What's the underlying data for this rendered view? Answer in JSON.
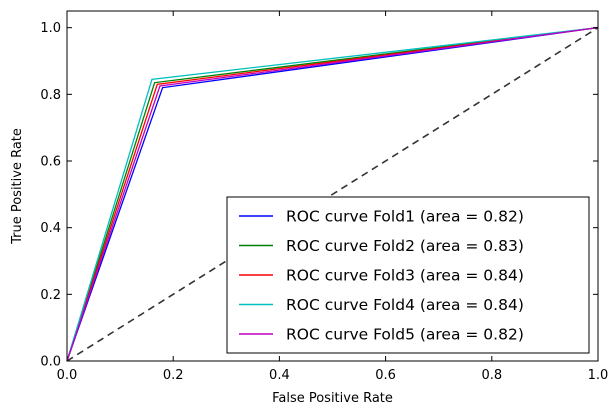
{
  "chart_data": {
    "type": "line",
    "title": "",
    "xlabel": "False Positive Rate",
    "ylabel": "True Positive Rate",
    "xlim": [
      0.0,
      1.0
    ],
    "ylim": [
      0.0,
      1.05
    ],
    "xticks": [
      "0.0",
      "0.2",
      "0.4",
      "0.6",
      "0.8",
      "1.0"
    ],
    "yticks": [
      "0.0",
      "0.2",
      "0.4",
      "0.6",
      "0.8",
      "1.0"
    ],
    "grid": false,
    "legend_position": "lower-right",
    "series": [
      {
        "name": "ROC curve Fold1 (area = 0.82)",
        "color": "#0000ff",
        "x": [
          0.0,
          0.18,
          1.0
        ],
        "y": [
          0.0,
          0.82,
          1.0
        ]
      },
      {
        "name": "ROC curve Fold2 (area = 0.83)",
        "color": "#008000",
        "x": [
          0.0,
          0.165,
          1.0
        ],
        "y": [
          0.0,
          0.835,
          1.0
        ]
      },
      {
        "name": "ROC curve Fold3 (area = 0.84)",
        "color": "#ff0000",
        "x": [
          0.0,
          0.17,
          1.0
        ],
        "y": [
          0.0,
          0.83,
          1.0
        ]
      },
      {
        "name": "ROC curve Fold4 (area = 0.84)",
        "color": "#00bfbf",
        "x": [
          0.0,
          0.16,
          1.0
        ],
        "y": [
          0.0,
          0.845,
          1.0
        ]
      },
      {
        "name": "ROC curve Fold5 (area = 0.82)",
        "color": "#bf00bf",
        "x": [
          0.0,
          0.175,
          1.0
        ],
        "y": [
          0.0,
          0.825,
          1.0
        ]
      }
    ],
    "reference_line": {
      "x": [
        0.0,
        1.0
      ],
      "y": [
        0.0,
        1.0
      ],
      "color": "#333333"
    }
  }
}
